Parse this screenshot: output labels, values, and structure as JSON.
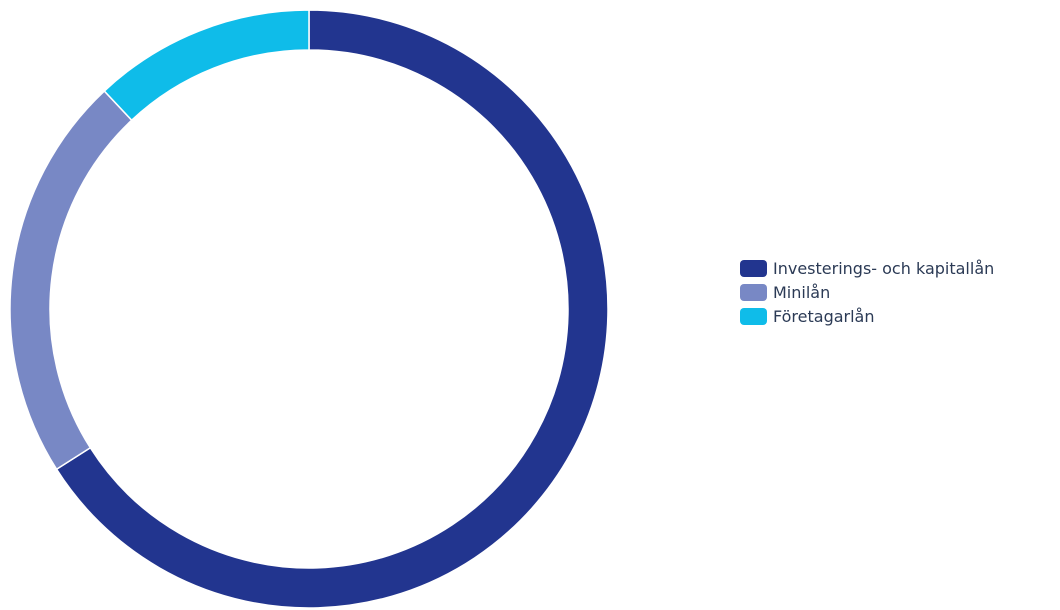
{
  "chart_data": {
    "type": "pie",
    "donut": true,
    "start": "top",
    "direction": "clockwise",
    "legend_position": "right",
    "series": [
      {
        "name": "Investerings- och kapitallån",
        "value": 66,
        "color": "#22358f"
      },
      {
        "name": "Minilån",
        "value": 22,
        "color": "#7888c5"
      },
      {
        "name": "Företagarlån",
        "value": 12,
        "color": "#0fbce9"
      }
    ]
  }
}
